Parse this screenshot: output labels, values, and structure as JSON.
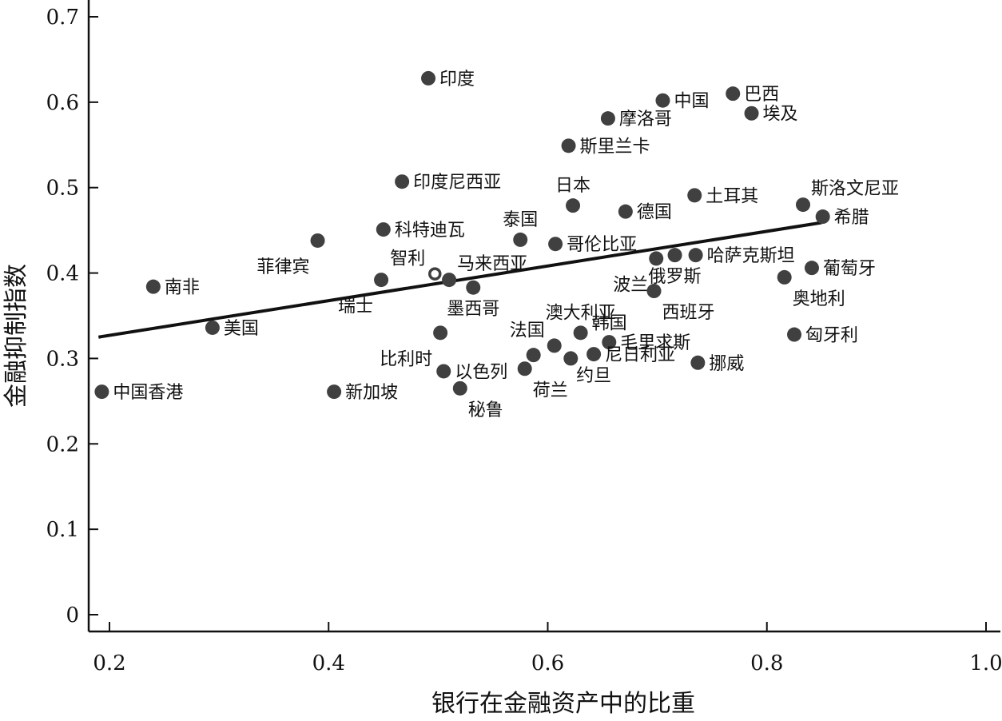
{
  "chart_data": {
    "type": "scatter",
    "title": "",
    "xlabel": "银行在金融资产中的比重",
    "ylabel": "金融抑制指数",
    "xlim": [
      0.18,
      1.01
    ],
    "ylim": [
      -0.02,
      0.715
    ],
    "xticks": [
      0.2,
      0.4,
      0.6,
      0.8,
      1.0
    ],
    "xtick_labels": [
      "0.2",
      "0.4",
      "0.6",
      "0.8",
      "1.0"
    ],
    "yticks": [
      0,
      0.1,
      0.2,
      0.3,
      0.4,
      0.5,
      0.6,
      0.7
    ],
    "ytick_labels": [
      "0",
      "0.1",
      "0.2",
      "0.3",
      "0.4",
      "0.5",
      "0.6",
      "0.7"
    ],
    "grid": false,
    "colors": {
      "point": "#404040",
      "line": "#111111",
      "highlight_fill": "#ffffff"
    },
    "trend_line": {
      "x": [
        0.19,
        0.85
      ],
      "y": [
        0.325,
        0.459
      ]
    },
    "points": [
      {
        "label": "印度",
        "x": 0.491,
        "y": 0.628,
        "label_side": "right"
      },
      {
        "label": "中国",
        "x": 0.705,
        "y": 0.602,
        "label_side": "right"
      },
      {
        "label": "巴西",
        "x": 0.769,
        "y": 0.61,
        "label_side": "right"
      },
      {
        "label": "埃及",
        "x": 0.786,
        "y": 0.587,
        "label_side": "right"
      },
      {
        "label": "摩洛哥",
        "x": 0.655,
        "y": 0.581,
        "label_side": "right"
      },
      {
        "label": "斯里兰卡",
        "x": 0.619,
        "y": 0.549,
        "label_side": "right"
      },
      {
        "label": "印度尼西亚",
        "x": 0.467,
        "y": 0.507,
        "label_side": "right"
      },
      {
        "label": "日本",
        "x": 0.623,
        "y": 0.479,
        "label_side": "above"
      },
      {
        "label": "土耳其",
        "x": 0.734,
        "y": 0.491,
        "label_side": "right"
      },
      {
        "label": "斯洛文尼亚",
        "x": 0.833,
        "y": 0.48,
        "label_side": "upper-right"
      },
      {
        "label": "希腊",
        "x": 0.851,
        "y": 0.466,
        "label_side": "right"
      },
      {
        "label": "德国",
        "x": 0.671,
        "y": 0.472,
        "label_side": "right"
      },
      {
        "label": "科特迪瓦",
        "x": 0.45,
        "y": 0.451,
        "label_side": "right"
      },
      {
        "label": "泰国",
        "x": 0.575,
        "y": 0.439,
        "label_side": "above"
      },
      {
        "label": "哥伦比亚",
        "x": 0.607,
        "y": 0.434,
        "label_side": "right"
      },
      {
        "label": "菲律宾",
        "x": 0.39,
        "y": 0.438,
        "label_side": "below-left"
      },
      {
        "label": "智利",
        "x": 0.497,
        "y": 0.399,
        "label_side": "upper-left",
        "highlight": true
      },
      {
        "label": "马来西亚",
        "x": 0.51,
        "y": 0.392,
        "label_side": "upper-right"
      },
      {
        "label": "南非",
        "x": 0.24,
        "y": 0.384,
        "label_side": "right"
      },
      {
        "label": "瑞士",
        "x": 0.448,
        "y": 0.392,
        "label_side": "below-left"
      },
      {
        "label": "墨西哥",
        "x": 0.532,
        "y": 0.383,
        "label_side": "below"
      },
      {
        "label": "波兰",
        "x": 0.699,
        "y": 0.417,
        "label_side": "below-left"
      },
      {
        "label": "",
        "x": 0.716,
        "y": 0.421,
        "label_side": "none"
      },
      {
        "label": "哈萨克斯坦",
        "x": 0.735,
        "y": 0.421,
        "label_side": "right"
      },
      {
        "label": "俄罗斯",
        "x": 0.716,
        "y": 0.421,
        "label_side": "below"
      },
      {
        "label": "葡萄牙",
        "x": 0.841,
        "y": 0.406,
        "label_side": "right"
      },
      {
        "label": "奥地利",
        "x": 0.816,
        "y": 0.395,
        "label_side": "below-right"
      },
      {
        "label": "西班牙",
        "x": 0.697,
        "y": 0.379,
        "label_side": "below-right"
      },
      {
        "label": "澳大利亚",
        "x": 0.63,
        "y": 0.33,
        "label_side": "above"
      },
      {
        "label": "韩国",
        "x": 0.63,
        "y": 0.33,
        "label_side": "upper-right-near"
      },
      {
        "label": "美国",
        "x": 0.294,
        "y": 0.336,
        "label_side": "right"
      },
      {
        "label": "比利时",
        "x": 0.502,
        "y": 0.33,
        "label_side": "below-left"
      },
      {
        "label": "法国",
        "x": 0.606,
        "y": 0.315,
        "label_side": "upper-left"
      },
      {
        "label": "毛里求斯",
        "x": 0.656,
        "y": 0.319,
        "label_side": "right"
      },
      {
        "label": "匈牙利",
        "x": 0.825,
        "y": 0.328,
        "label_side": "right"
      },
      {
        "label": "",
        "x": 0.587,
        "y": 0.304,
        "label_side": "none"
      },
      {
        "label": "",
        "x": 0.621,
        "y": 0.3,
        "label_side": "none"
      },
      {
        "label": "尼日利亚",
        "x": 0.642,
        "y": 0.305,
        "label_side": "right"
      },
      {
        "label": "约旦",
        "x": 0.642,
        "y": 0.305,
        "label_side": "below"
      },
      {
        "label": "挪威",
        "x": 0.737,
        "y": 0.295,
        "label_side": "right"
      },
      {
        "label": "以色列",
        "x": 0.505,
        "y": 0.285,
        "label_side": "right"
      },
      {
        "label": "荷兰",
        "x": 0.579,
        "y": 0.288,
        "label_side": "below-right"
      },
      {
        "label": "中国香港",
        "x": 0.193,
        "y": 0.261,
        "label_side": "right"
      },
      {
        "label": "新加坡",
        "x": 0.405,
        "y": 0.261,
        "label_side": "right"
      },
      {
        "label": "秘鲁",
        "x": 0.52,
        "y": 0.265,
        "label_side": "below-right"
      }
    ]
  }
}
